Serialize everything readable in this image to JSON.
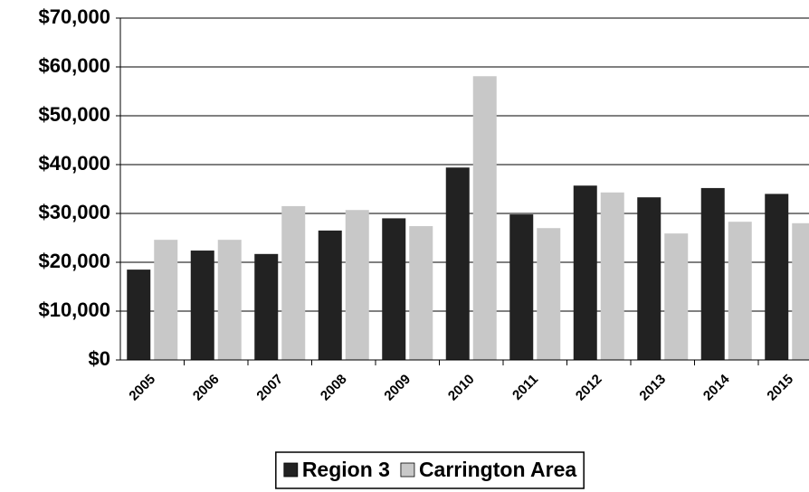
{
  "chart_data": {
    "type": "bar",
    "categories": [
      "2005",
      "2006",
      "2007",
      "2008",
      "2009",
      "2010",
      "2011",
      "2012",
      "2013",
      "2014",
      "2015"
    ],
    "series": [
      {
        "name": "Region 3",
        "color": "#222222",
        "values": [
          18500,
          22400,
          21700,
          26500,
          29000,
          39400,
          29800,
          35700,
          33300,
          35200,
          34000
        ]
      },
      {
        "name": "Carrington Area",
        "color": "#c8c8c8",
        "values": [
          24600,
          24600,
          31500,
          30700,
          27400,
          58100,
          27000,
          34300,
          25900,
          28300,
          28000
        ]
      }
    ],
    "ylim": [
      0,
      70000
    ],
    "yticks": [
      {
        "value": 0,
        "label": "$0"
      },
      {
        "value": 10000,
        "label": "$10,000"
      },
      {
        "value": 20000,
        "label": "$20,000"
      },
      {
        "value": 30000,
        "label": "$30,000"
      },
      {
        "value": 40000,
        "label": "$40,000"
      },
      {
        "value": 50000,
        "label": "$50,000"
      },
      {
        "value": 60000,
        "label": "$60,000"
      },
      {
        "value": 70000,
        "label": "$70,000"
      }
    ],
    "grid": true,
    "legend": "bottom"
  }
}
